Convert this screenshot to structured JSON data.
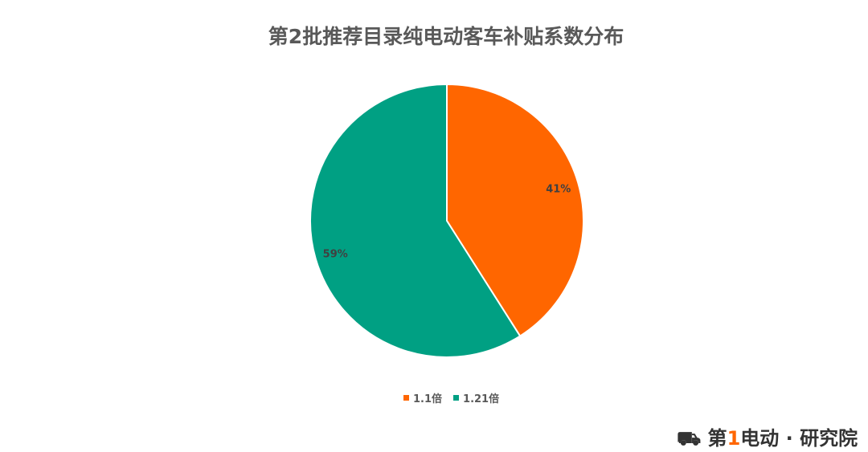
{
  "chart_data": {
    "type": "pie",
    "title": "第2批推荐目录纯电动客车补贴系数分布",
    "start_angle": "12 o'clock, clockwise",
    "slices": [
      {
        "label": "1.1倍",
        "value": 41,
        "data_label": "41%",
        "color": "#ff6600"
      },
      {
        "label": "1.21倍",
        "value": 59,
        "data_label": "59%",
        "color": "#00a083"
      }
    ],
    "legend_position": "bottom"
  },
  "logo": {
    "text": "第1电动·研究院"
  }
}
